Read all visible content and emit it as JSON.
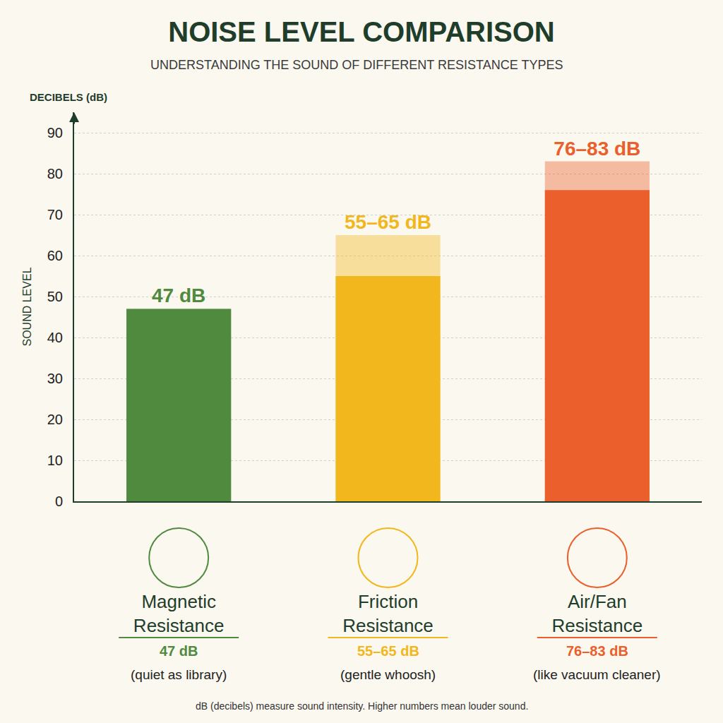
{
  "chart_data": {
    "type": "bar",
    "title": "NOISE LEVEL COMPARISON",
    "subtitle": "UNDERSTANDING THE SOUND OF DIFFERENT RESISTANCE TYPES",
    "y_unit": "DECIBELS (dB)",
    "ylabel": "SOUND LEVEL",
    "categories": [
      "Magnetic Resistance",
      "Friction Resistance",
      "Air/Fan Resistance"
    ],
    "values": [
      47,
      55,
      76
    ],
    "high": [
      47,
      65,
      83
    ],
    "value_labels": [
      "47 dB",
      "55–65 dB",
      "76–83 dB"
    ],
    "descriptions": [
      "(quiet as library)",
      "(gentle whoosh)",
      "(like vacuum cleaner)"
    ],
    "note": "dB (decibels) measure sound intensity. Higher numbers mean louder sound.",
    "colors": [
      "#4f8a3f",
      "#f2b71c",
      "#ea5f2b"
    ],
    "ylim": [
      0,
      95
    ],
    "yticks": [
      0,
      10,
      20,
      30,
      40,
      50,
      60,
      70,
      80,
      90
    ],
    "grid": true,
    "data_labels": true
  }
}
